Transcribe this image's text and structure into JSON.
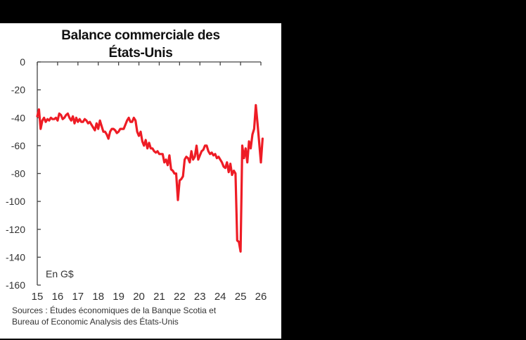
{
  "panel": {
    "background": "#ffffff",
    "page_background": "#000000"
  },
  "chart_data": {
    "type": "line",
    "title": "Balance commerciale des États-Unis",
    "title_lines": [
      "Balance commerciale des",
      "États-Unis"
    ],
    "xlabel": "",
    "ylabel": "",
    "unit_label": "En G$",
    "ylim": [
      -160,
      0
    ],
    "yticks": [
      0,
      -20,
      -40,
      -60,
      -80,
      -100,
      -120,
      -140,
      -160
    ],
    "ytick_labels": [
      "0",
      "-20",
      "-40",
      "-60",
      "-80",
      "-100",
      "-120",
      "-140",
      "-160"
    ],
    "xlim": [
      2015,
      2026
    ],
    "xticks": [
      2015,
      2016,
      2017,
      2018,
      2019,
      2020,
      2021,
      2022,
      2023,
      2024,
      2025,
      2026
    ],
    "xtick_labels": [
      "15",
      "16",
      "17",
      "18",
      "19",
      "20",
      "21",
      "22",
      "23",
      "24",
      "25",
      "26"
    ],
    "grid": false,
    "legend": null,
    "series": [
      {
        "name": "Balance commerciale",
        "color": "#ee1c25",
        "x_start": 2015.0,
        "x_step_months": 1,
        "values": [
          -39,
          -34,
          -48,
          -42,
          -40,
          -43,
          -41,
          -42,
          -40,
          -41,
          -41,
          -40,
          -42,
          -37,
          -38,
          -41,
          -40,
          -38,
          -37,
          -40,
          -42,
          -39,
          -44,
          -40,
          -43,
          -41,
          -43,
          -43,
          -41,
          -42,
          -44,
          -43,
          -45,
          -47,
          -49,
          -44,
          -48,
          -42,
          -46,
          -50,
          -50,
          -52,
          -55,
          -50,
          -48,
          -48,
          -49,
          -51,
          -50,
          -48,
          -48,
          -48,
          -45,
          -42,
          -40,
          -43,
          -43,
          -40,
          -42,
          -50,
          -53,
          -50,
          -57,
          -60,
          -56,
          -62,
          -58,
          -62,
          -62,
          -64,
          -65,
          -64,
          -66,
          -66,
          -66,
          -72,
          -70,
          -74,
          -67,
          -77,
          -78,
          -80,
          -80,
          -99,
          -85,
          -84,
          -82,
          -70,
          -68,
          -69,
          -72,
          -64,
          -70,
          -68,
          -60,
          -70,
          -67,
          -64,
          -63,
          -60,
          -60,
          -64,
          -66,
          -65,
          -67,
          -66,
          -69,
          -68,
          -70,
          -72,
          -75,
          -76,
          -72,
          -79,
          -73,
          -81,
          -78,
          -80,
          -128,
          -129,
          -136,
          -60,
          -69,
          -62,
          -72,
          -57,
          -62,
          -52,
          -48,
          -31,
          -44,
          -58,
          -72,
          -55
        ]
      }
    ]
  },
  "sources": {
    "line1": "Sources : Études économiques de la Banque Scotia et",
    "line2": "Bureau of Economic Analysis des États-Unis"
  }
}
